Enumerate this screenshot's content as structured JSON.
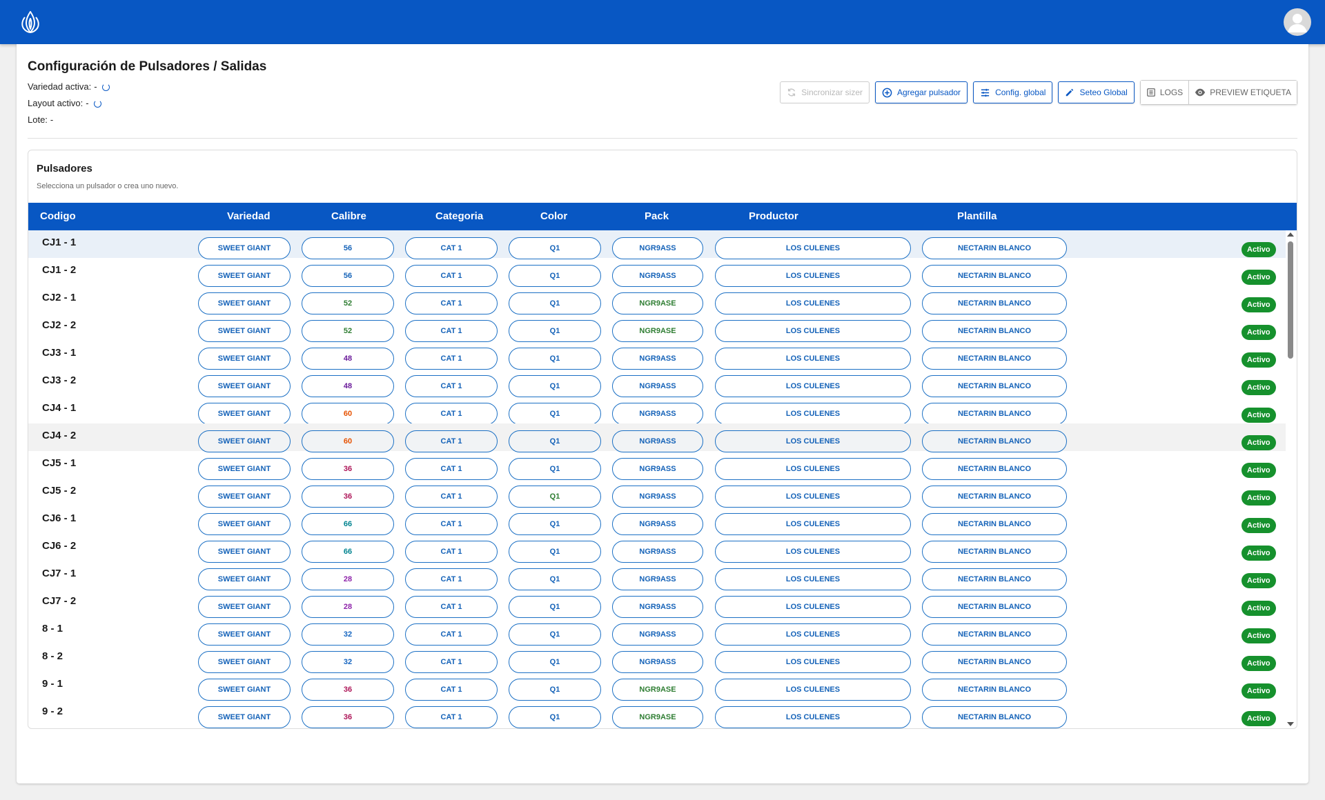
{
  "header": {
    "logo_icon": "lotus-icon",
    "avatar_icon": "person-icon",
    "color": "#0857c3"
  },
  "page": {
    "title": "Configuración de Pulsadores / Salidas",
    "variedad_label": "Variedad activa:",
    "variedad_value": "-",
    "layout_label": "Layout activo:",
    "layout_value": "-",
    "lote_label": "Lote:",
    "lote_value": "-"
  },
  "toolbar": {
    "sync": "Sincronizar sizer",
    "add": "Agregar pulsador",
    "config": "Config. global",
    "seteo": "Seteo Global",
    "logs": "LOGS",
    "preview": "PREVIEW ETIQUETA"
  },
  "panel": {
    "title": "Pulsadores",
    "subtitle": "Selecciona un pulsador o crea uno nuevo."
  },
  "columns": [
    "Codigo",
    "Variedad",
    "Calibre",
    "Categoria",
    "Color",
    "Pack",
    "Productor",
    "Plantilla"
  ],
  "colors": {
    "accent": "#0857c3",
    "pill_text": "#1462b8",
    "status": "#16912d",
    "calibre": {
      "56": "#1462b8",
      "52": "#2e7d32",
      "48": "#6a1b9a",
      "60": "#e65100",
      "36": "#ad1457",
      "66": "#00838f",
      "28": "#8e24aa",
      "32": "#1565c0"
    },
    "color_green": "#2e7d32",
    "pack": {
      "NGR9ASS": "#1462b8",
      "NGR9ASE": "#2e7d32"
    }
  },
  "rows": [
    {
      "codigo": "CJ1 - 1",
      "variedad": "SWEET GIANT",
      "calibre": "56",
      "categoria": "CAT 1",
      "color": "Q1",
      "pack": "NGR9ASS",
      "productor": "LOS CULENES",
      "plantilla": "NECTARIN BLANCO",
      "estado": "Activo",
      "selected": true
    },
    {
      "codigo": "CJ1 - 2",
      "variedad": "SWEET GIANT",
      "calibre": "56",
      "categoria": "CAT 1",
      "color": "Q1",
      "pack": "NGR9ASS",
      "productor": "LOS CULENES",
      "plantilla": "NECTARIN BLANCO",
      "estado": "Activo"
    },
    {
      "codigo": "CJ2 - 1",
      "variedad": "SWEET GIANT",
      "calibre": "52",
      "categoria": "CAT 1",
      "color": "Q1",
      "pack": "NGR9ASE",
      "productor": "LOS CULENES",
      "plantilla": "NECTARIN BLANCO",
      "estado": "Activo"
    },
    {
      "codigo": "CJ2 - 2",
      "variedad": "SWEET GIANT",
      "calibre": "52",
      "categoria": "CAT 1",
      "color": "Q1",
      "pack": "NGR9ASE",
      "productor": "LOS CULENES",
      "plantilla": "NECTARIN BLANCO",
      "estado": "Activo"
    },
    {
      "codigo": "CJ3 - 1",
      "variedad": "SWEET GIANT",
      "calibre": "48",
      "categoria": "CAT 1",
      "color": "Q1",
      "pack": "NGR9ASS",
      "productor": "LOS CULENES",
      "plantilla": "NECTARIN BLANCO",
      "estado": "Activo"
    },
    {
      "codigo": "CJ3 - 2",
      "variedad": "SWEET GIANT",
      "calibre": "48",
      "categoria": "CAT 1",
      "color": "Q1",
      "pack": "NGR9ASS",
      "productor": "LOS CULENES",
      "plantilla": "NECTARIN BLANCO",
      "estado": "Activo"
    },
    {
      "codigo": "CJ4 - 1",
      "variedad": "SWEET GIANT",
      "calibre": "60",
      "categoria": "CAT 1",
      "color": "Q1",
      "pack": "NGR9ASS",
      "productor": "LOS CULENES",
      "plantilla": "NECTARIN BLANCO",
      "estado": "Activo"
    },
    {
      "codigo": "CJ4 - 2",
      "variedad": "SWEET GIANT",
      "calibre": "60",
      "categoria": "CAT 1",
      "color": "Q1",
      "pack": "NGR9ASS",
      "productor": "LOS CULENES",
      "plantilla": "NECTARIN BLANCO",
      "estado": "Activo",
      "hovered": true
    },
    {
      "codigo": "CJ5 - 1",
      "variedad": "SWEET GIANT",
      "calibre": "36",
      "categoria": "CAT 1",
      "color": "Q1",
      "pack": "NGR9ASS",
      "productor": "LOS CULENES",
      "plantilla": "NECTARIN BLANCO",
      "estado": "Activo"
    },
    {
      "codigo": "CJ5 - 2",
      "variedad": "SWEET GIANT",
      "calibre": "36",
      "categoria": "CAT 1",
      "color": "Q1",
      "color_green": true,
      "pack": "NGR9ASS",
      "productor": "LOS CULENES",
      "plantilla": "NECTARIN BLANCO",
      "estado": "Activo"
    },
    {
      "codigo": "CJ6 - 1",
      "variedad": "SWEET GIANT",
      "calibre": "66",
      "categoria": "CAT 1",
      "color": "Q1",
      "pack": "NGR9ASS",
      "productor": "LOS CULENES",
      "plantilla": "NECTARIN BLANCO",
      "estado": "Activo"
    },
    {
      "codigo": "CJ6 - 2",
      "variedad": "SWEET GIANT",
      "calibre": "66",
      "categoria": "CAT 1",
      "color": "Q1",
      "pack": "NGR9ASS",
      "productor": "LOS CULENES",
      "plantilla": "NECTARIN BLANCO",
      "estado": "Activo"
    },
    {
      "codigo": "CJ7 - 1",
      "variedad": "SWEET GIANT",
      "calibre": "28",
      "categoria": "CAT 1",
      "color": "Q1",
      "pack": "NGR9ASS",
      "productor": "LOS CULENES",
      "plantilla": "NECTARIN BLANCO",
      "estado": "Activo"
    },
    {
      "codigo": "CJ7 - 2",
      "variedad": "SWEET GIANT",
      "calibre": "28",
      "categoria": "CAT 1",
      "color": "Q1",
      "pack": "NGR9ASS",
      "productor": "LOS CULENES",
      "plantilla": "NECTARIN BLANCO",
      "estado": "Activo"
    },
    {
      "codigo": "8 - 1",
      "variedad": "SWEET GIANT",
      "calibre": "32",
      "categoria": "CAT 1",
      "color": "Q1",
      "pack": "NGR9ASS",
      "productor": "LOS CULENES",
      "plantilla": "NECTARIN BLANCO",
      "estado": "Activo"
    },
    {
      "codigo": "8 - 2",
      "variedad": "SWEET GIANT",
      "calibre": "32",
      "categoria": "CAT 1",
      "color": "Q1",
      "pack": "NGR9ASS",
      "productor": "LOS CULENES",
      "plantilla": "NECTARIN BLANCO",
      "estado": "Activo"
    },
    {
      "codigo": "9 - 1",
      "variedad": "SWEET GIANT",
      "calibre": "36",
      "categoria": "CAT 1",
      "color": "Q1",
      "pack": "NGR9ASE",
      "productor": "LOS CULENES",
      "plantilla": "NECTARIN BLANCO",
      "estado": "Activo"
    },
    {
      "codigo": "9 - 2",
      "variedad": "SWEET GIANT",
      "calibre": "36",
      "categoria": "CAT 1",
      "color": "Q1",
      "pack": "NGR9ASE",
      "productor": "LOS CULENES",
      "plantilla": "NECTARIN BLANCO",
      "estado": "Activo"
    }
  ]
}
